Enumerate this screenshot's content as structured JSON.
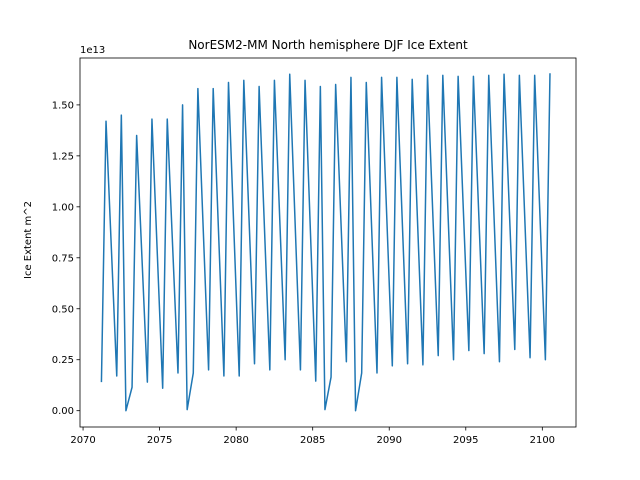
{
  "chart_data": {
    "type": "line",
    "title": "NorESM2-MM North hemisphere DJF Ice Extent",
    "xlabel": "",
    "ylabel": "Ice Extent m^2",
    "y_offset_label": "1e13",
    "xlim": [
      2069.8,
      2102.2
    ],
    "ylim": [
      -0.08,
      1.73
    ],
    "y_scale": 10000000000000.0,
    "xticks": [
      2070,
      2075,
      2080,
      2085,
      2090,
      2095,
      2100
    ],
    "yticks": [
      0.0,
      0.25,
      0.5,
      0.75,
      1.0,
      1.25,
      1.5
    ],
    "ytick_labels": [
      "0.00",
      "0.25",
      "0.50",
      "0.75",
      "1.00",
      "1.25",
      "1.50"
    ],
    "grid": false,
    "line_color": "#1f77b4",
    "series": [
      {
        "x": [
          2071.2,
          2071.5,
          2072.2,
          2072.5,
          2072.8,
          2073.2,
          2073.5,
          2074.2,
          2074.5,
          2075.2,
          2075.5,
          2076.2,
          2076.5,
          2076.8,
          2077.2,
          2077.5,
          2078.2,
          2078.5,
          2079.2,
          2079.5,
          2080.2,
          2080.5,
          2081.2,
          2081.5,
          2082.2,
          2082.5,
          2083.2,
          2083.5,
          2084.2,
          2084.5,
          2085.2,
          2085.5,
          2085.8,
          2086.2,
          2086.5,
          2087.2,
          2087.5,
          2087.8,
          2088.2,
          2088.5,
          2089.2,
          2089.5,
          2090.2,
          2090.5,
          2091.2,
          2091.5,
          2092.2,
          2092.5,
          2093.2,
          2093.5,
          2094.2,
          2094.5,
          2095.2,
          2095.5,
          2096.2,
          2096.5,
          2097.2,
          2097.5,
          2098.2,
          2098.5,
          2099.2,
          2099.5,
          2100.2,
          2100.5
        ],
        "y": [
          0.14,
          1.42,
          0.17,
          1.45,
          0.0,
          0.115,
          1.35,
          0.14,
          1.43,
          0.11,
          1.43,
          0.185,
          1.5,
          0.005,
          0.185,
          1.58,
          0.2,
          1.58,
          0.17,
          1.61,
          0.17,
          1.62,
          0.23,
          1.59,
          0.2,
          1.62,
          0.25,
          1.65,
          0.2,
          1.62,
          0.145,
          1.59,
          0.005,
          0.165,
          1.6,
          0.24,
          1.635,
          0.0,
          0.185,
          1.61,
          0.185,
          1.635,
          0.22,
          1.635,
          0.23,
          1.625,
          0.225,
          1.645,
          0.27,
          1.645,
          0.25,
          1.64,
          0.295,
          1.64,
          0.28,
          1.645,
          0.24,
          1.65,
          0.3,
          1.645,
          0.26,
          1.645,
          0.25,
          1.655
        ]
      }
    ]
  }
}
